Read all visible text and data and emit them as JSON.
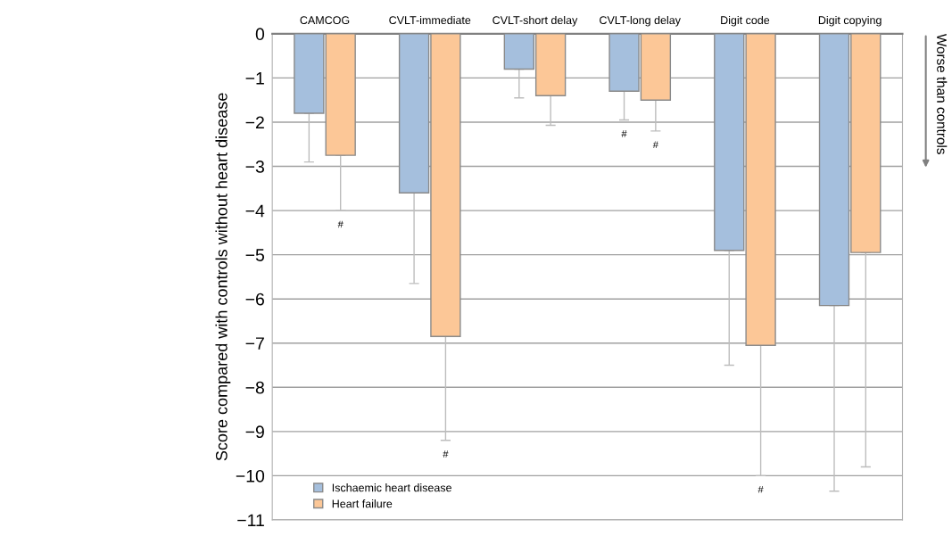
{
  "chart_data": {
    "type": "bar",
    "ylabel": "Score compared with controls without heart disease",
    "categories": [
      "CAMCOG",
      "CVLT-immediate",
      "CVLT-short delay",
      "CVLT-long delay",
      "Digit code",
      "Digit copying"
    ],
    "series": [
      {
        "name": "Ischaemic heart disease",
        "color": "#a5bfdd",
        "values": [
          -1.8,
          -3.6,
          -0.8,
          -1.3,
          -4.9,
          -6.15
        ],
        "errors": [
          [
            -2.9,
            -1.8
          ],
          [
            -5.65,
            -3.6
          ],
          [
            -1.45,
            -0.8
          ],
          [
            -1.95,
            -1.3
          ],
          [
            -7.5,
            -4.9
          ],
          [
            -10.35,
            -6.15
          ]
        ]
      },
      {
        "name": "Heart failure",
        "color": "#fcc797",
        "values": [
          -2.75,
          -6.85,
          -1.4,
          -1.5,
          -7.05,
          -4.95
        ],
        "errors": [
          [
            -4.0,
            -2.75
          ],
          [
            -9.2,
            -6.85
          ],
          [
            -2.07,
            -1.4
          ],
          [
            -2.2,
            -1.5
          ],
          [
            -10.0,
            -7.05
          ],
          [
            -9.8,
            -4.95
          ]
        ]
      }
    ],
    "ylim": [
      -11,
      0
    ],
    "yticks": [
      0,
      {
        "value": -1,
        "label": "−1"
      },
      {
        "value": -2,
        "label": "−2"
      },
      {
        "value": -3,
        "label": "−3"
      },
      {
        "value": -4,
        "label": "−4"
      },
      {
        "value": -5,
        "label": "−5"
      },
      {
        "value": -6,
        "label": "−6"
      },
      {
        "value": -7,
        "label": "−7"
      },
      {
        "value": -8,
        "label": "−8"
      },
      {
        "value": -9,
        "label": "−9"
      },
      {
        "value": -10,
        "label": "−10"
      },
      {
        "value": -11,
        "label": "−11"
      }
    ],
    "grid": "y",
    "legend": "bottom left",
    "annotations": [
      "#",
      "#",
      "#",
      "#",
      "#",
      "Worse than controls"
    ]
  }
}
